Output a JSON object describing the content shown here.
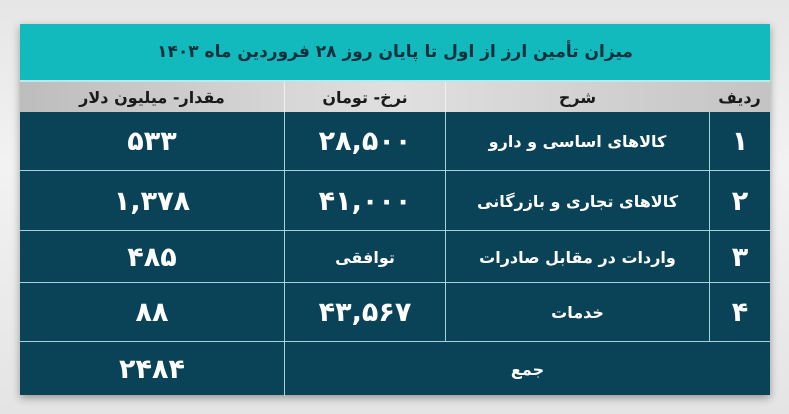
{
  "title": "میزان تأمین ارز از اول تا پایان روز ۲۸ فروردین ماه ۱۴۰۳",
  "headers": {
    "index": "ردیف",
    "description": "شرح",
    "rate": "نرخ- تومان",
    "amount": "مقدار- میلیون دلار"
  },
  "rows": [
    {
      "index": "۱",
      "description": "کالاهای اساسی و دارو",
      "rate": "۲۸,۵۰۰",
      "amount": "۵۳۳"
    },
    {
      "index": "۲",
      "description": "کالاهای تجاری و بازرگانی",
      "rate": "۴۱,۰۰۰",
      "amount": "۱,۳۷۸"
    },
    {
      "index": "۳",
      "description": "واردات در مقابل صادرات",
      "rate": "توافقی",
      "amount": "۴۸۵"
    },
    {
      "index": "۴",
      "description": "خدمات",
      "rate": "۴۳,۵۶۷",
      "amount": "۸۸"
    }
  ],
  "total": {
    "label": "جمع",
    "amount": "۲۴۸۴"
  },
  "colors": {
    "title_bg": "#12b9bd",
    "body_bg": "#0a4357",
    "header_bg": "#d0d0d0"
  }
}
